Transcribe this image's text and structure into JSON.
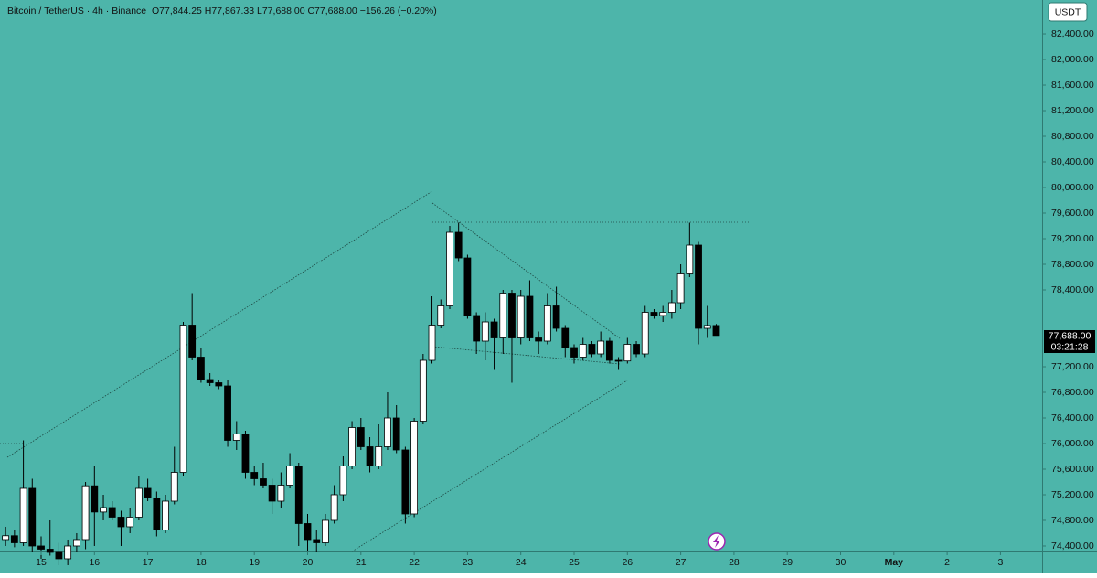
{
  "chart_data": {
    "type": "candlestick",
    "title": "Bitcoin / TetherUS · 4h · Binance",
    "subtitle": "O77,844.25 H77,867.33 L77,688.00 C77,688.00 −156.26 (−0.20%)",
    "currency_button": "USDT",
    "last_price_label": "77,688.00",
    "countdown": "03:21:28",
    "up_color": "#ffffff",
    "down_color": "#000000",
    "grid": false,
    "xlim": [
      14.228,
      33.782
    ],
    "xticks": [
      15,
      16,
      17,
      18,
      19,
      20,
      21,
      22,
      23,
      24,
      25,
      26,
      27,
      28,
      29,
      30,
      {
        "value": 31,
        "label": "May"
      },
      {
        "value": 32,
        "label": "2"
      },
      {
        "value": 33,
        "label": "3"
      }
    ],
    "ylim": [
      74314,
      82929
    ],
    "yticks": [
      {
        "value": 82400,
        "label": "82,400.00"
      },
      {
        "value": 82000,
        "label": "82,000.00"
      },
      {
        "value": 81600,
        "label": "81,600.00"
      },
      {
        "value": 81200,
        "label": "81,200.00"
      },
      {
        "value": 80800,
        "label": "80,800.00"
      },
      {
        "value": 80400,
        "label": "80,400.00"
      },
      {
        "value": 80000,
        "label": "80,000.00"
      },
      {
        "value": 79600,
        "label": "79,600.00"
      },
      {
        "value": 79200,
        "label": "79,200.00"
      },
      {
        "value": 78800,
        "label": "78,800.00"
      },
      {
        "value": 78400,
        "label": "78,400.00"
      },
      {
        "value": 77200,
        "label": "77,200.00"
      },
      {
        "value": 76800,
        "label": "76,800.00"
      },
      {
        "value": 76400,
        "label": "76,400.00"
      },
      {
        "value": 76000,
        "label": "76,000.00"
      },
      {
        "value": 75600,
        "label": "75,600.00"
      },
      {
        "value": 75200,
        "label": "75,200.00"
      },
      {
        "value": 74800,
        "label": "74,800.00"
      },
      {
        "value": 74400,
        "label": "74,400.00"
      }
    ],
    "x": [
      14.333,
      14.5,
      14.667,
      14.833,
      15,
      15.167,
      15.333,
      15.5,
      15.667,
      15.833,
      16,
      16.167,
      16.333,
      16.5,
      16.667,
      16.833,
      17,
      17.167,
      17.333,
      17.5,
      17.667,
      17.833,
      18,
      18.167,
      18.333,
      18.5,
      18.667,
      18.833,
      19,
      19.167,
      19.333,
      19.5,
      19.667,
      19.833,
      20,
      20.167,
      20.333,
      20.5,
      20.667,
      20.833,
      21,
      21.167,
      21.333,
      21.5,
      21.667,
      21.833,
      22,
      22.167,
      22.333,
      22.5,
      22.667,
      22.833,
      23,
      23.167,
      23.333,
      23.5,
      23.667,
      23.833,
      24,
      24.167,
      24.333,
      24.5,
      24.667,
      24.833,
      25,
      25.167,
      25.333,
      25.5,
      25.667,
      25.833,
      26,
      26.167,
      26.333,
      26.5,
      26.667,
      26.833,
      27,
      27.167,
      27.333,
      27.5,
      27.667
    ],
    "open": [
      74500,
      74560,
      74450,
      75300,
      74400,
      74350,
      74300,
      74200,
      74400,
      74500,
      75340,
      74930,
      75000,
      74850,
      74700,
      74850,
      75300,
      75150,
      74650,
      75100,
      75550,
      77850,
      77350,
      77000,
      76950,
      76900,
      76050,
      76150,
      75550,
      75450,
      75350,
      75100,
      75350,
      75650,
      74750,
      74500,
      74450,
      74800,
      75200,
      75650,
      76250,
      75950,
      75650,
      75950,
      76400,
      75900,
      74900,
      76350,
      77300,
      77850,
      78150,
      79300,
      78900,
      78000,
      77600,
      77900,
      77650,
      78350,
      77650,
      78300,
      77650,
      77600,
      78150,
      77800,
      77500,
      77350,
      77550,
      77400,
      77600,
      77300,
      77290,
      77550,
      77400,
      78050,
      78000,
      78050,
      78200,
      78650,
      79100,
      77800,
      77844.25
    ],
    "high": [
      74700,
      74650,
      76050,
      75450,
      74550,
      74800,
      74450,
      74500,
      74600,
      75400,
      75650,
      75200,
      75100,
      74950,
      75000,
      75500,
      75450,
      75250,
      75200,
      75950,
      77900,
      78350,
      77500,
      77100,
      77000,
      77000,
      76350,
      76200,
      75650,
      75700,
      75450,
      75550,
      75850,
      75700,
      74900,
      74650,
      74900,
      75350,
      75800,
      76350,
      76400,
      76100,
      76300,
      76800,
      76600,
      75950,
      76400,
      77400,
      78300,
      78250,
      79400,
      79450,
      78950,
      78050,
      78050,
      77950,
      78400,
      78400,
      78400,
      78550,
      77750,
      78350,
      78450,
      77850,
      77550,
      77650,
      77600,
      77750,
      77650,
      77350,
      77650,
      77600,
      78150,
      78100,
      78150,
      78400,
      78800,
      79450,
      79150,
      78150,
      77867.33
    ],
    "low": [
      74400,
      74380,
      74400,
      74300,
      74200,
      74250,
      74100,
      74100,
      74300,
      74350,
      74400,
      74800,
      74800,
      74400,
      74600,
      74800,
      75100,
      74550,
      74600,
      75050,
      75500,
      77300,
      76950,
      76900,
      76850,
      75950,
      75900,
      75450,
      75350,
      75300,
      74900,
      75000,
      75300,
      74400,
      74300,
      74300,
      74400,
      74750,
      75100,
      75600,
      75900,
      75550,
      75600,
      75900,
      75850,
      74750,
      74850,
      76300,
      77250,
      77800,
      78100,
      78850,
      77950,
      77400,
      77300,
      77150,
      77400,
      76950,
      77550,
      77600,
      77400,
      77550,
      77750,
      77350,
      77250,
      77300,
      77350,
      77350,
      77250,
      77150,
      77250,
      77350,
      77350,
      77950,
      77900,
      77950,
      78100,
      78600,
      77550,
      77650,
      77688
    ],
    "close": [
      74560,
      74450,
      75300,
      74400,
      74350,
      74300,
      74200,
      74400,
      74500,
      75340,
      74930,
      75000,
      74850,
      74700,
      74850,
      75300,
      75150,
      74650,
      75100,
      75550,
      77850,
      77350,
      77000,
      76950,
      76900,
      76050,
      76150,
      75550,
      75450,
      75350,
      75100,
      75350,
      75650,
      74750,
      74500,
      74450,
      74800,
      75200,
      75650,
      76250,
      75950,
      75650,
      75950,
      76400,
      75900,
      74900,
      76350,
      77300,
      77850,
      78150,
      79300,
      78900,
      78000,
      77600,
      77900,
      77650,
      78350,
      77650,
      78300,
      77650,
      77600,
      78150,
      77800,
      77500,
      77350,
      77550,
      77400,
      77600,
      77300,
      77290,
      77550,
      77400,
      78050,
      78000,
      78050,
      78200,
      78650,
      79100,
      77800,
      77844.25,
      77688
    ]
  }
}
